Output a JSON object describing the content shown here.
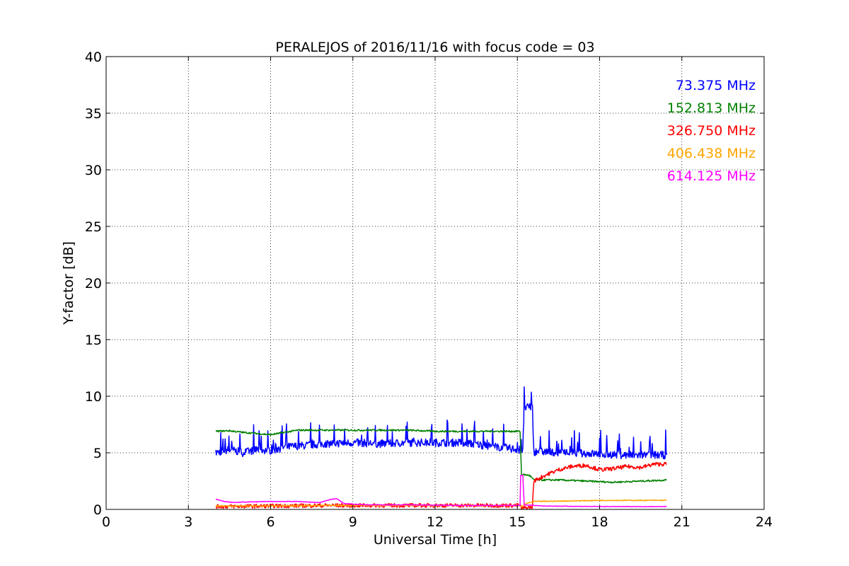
{
  "chart_data": {
    "type": "line",
    "title": "PERALEJOS of 2016/11/16 with focus code = 03",
    "xlabel": "Universal Time [h]",
    "ylabel": "Y-factor [dB]",
    "xlim": [
      0,
      24
    ],
    "ylim": [
      0,
      40
    ],
    "xticks": [
      0,
      3,
      6,
      9,
      12,
      15,
      18,
      21,
      24
    ],
    "yticks": [
      0,
      5,
      10,
      15,
      20,
      25,
      30,
      35,
      40
    ],
    "grid": true,
    "legend_position": "top-right",
    "series": [
      {
        "name": "73.375 MHz",
        "color": "#0000ff",
        "noise": 0.7,
        "points": [
          [
            4.0,
            5.0
          ],
          [
            4.5,
            5.3
          ],
          [
            5.0,
            5.0
          ],
          [
            5.5,
            5.3
          ],
          [
            6.0,
            5.2
          ],
          [
            6.5,
            5.5
          ],
          [
            7.0,
            5.6
          ],
          [
            8.0,
            5.8
          ],
          [
            9.0,
            5.9
          ],
          [
            10.0,
            5.8
          ],
          [
            11.0,
            5.9
          ],
          [
            12.0,
            5.9
          ],
          [
            13.0,
            5.9
          ],
          [
            14.0,
            5.6
          ],
          [
            15.0,
            5.3
          ],
          [
            15.2,
            5.3
          ],
          [
            15.25,
            9.0
          ],
          [
            15.55,
            9.0
          ],
          [
            15.6,
            5.1
          ],
          [
            16.0,
            5.1
          ],
          [
            17.0,
            5.0
          ],
          [
            18.0,
            4.9
          ],
          [
            19.0,
            4.8
          ],
          [
            20.0,
            4.8
          ],
          [
            20.45,
            4.8
          ]
        ]
      },
      {
        "name": "152.813 MHz",
        "color": "#008000",
        "noise": 0.15,
        "points": [
          [
            4.0,
            6.9
          ],
          [
            4.5,
            6.95
          ],
          [
            5.0,
            6.8
          ],
          [
            5.5,
            6.7
          ],
          [
            6.0,
            6.6
          ],
          [
            6.5,
            6.8
          ],
          [
            7.0,
            7.0
          ],
          [
            8.0,
            7.0
          ],
          [
            9.0,
            7.0
          ],
          [
            10.0,
            7.0
          ],
          [
            11.0,
            7.0
          ],
          [
            12.0,
            6.9
          ],
          [
            13.0,
            6.9
          ],
          [
            14.0,
            6.9
          ],
          [
            15.1,
            6.9
          ],
          [
            15.15,
            3.1
          ],
          [
            15.45,
            3.0
          ],
          [
            15.6,
            2.6
          ],
          [
            16.5,
            2.6
          ],
          [
            17.5,
            2.5
          ],
          [
            18.5,
            2.4
          ],
          [
            19.5,
            2.5
          ],
          [
            20.45,
            2.6
          ]
        ]
      },
      {
        "name": "326.750 MHz",
        "color": "#ff0000",
        "noise": 0.35,
        "points": [
          [
            4.0,
            0.25
          ],
          [
            6.0,
            0.3
          ],
          [
            8.0,
            0.35
          ],
          [
            10.0,
            0.35
          ],
          [
            12.0,
            0.35
          ],
          [
            14.0,
            0.35
          ],
          [
            15.1,
            0.35
          ],
          [
            15.15,
            0.1
          ],
          [
            15.55,
            0.2
          ],
          [
            15.6,
            2.5
          ],
          [
            16.0,
            3.0
          ],
          [
            16.5,
            3.5
          ],
          [
            17.0,
            3.8
          ],
          [
            17.5,
            3.9
          ],
          [
            18.0,
            3.5
          ],
          [
            18.5,
            3.6
          ],
          [
            19.0,
            3.8
          ],
          [
            19.5,
            3.7
          ],
          [
            20.0,
            4.0
          ],
          [
            20.45,
            4.0
          ]
        ]
      },
      {
        "name": "406.438 MHz",
        "color": "#ffa500",
        "noise": 0.08,
        "points": [
          [
            4.0,
            0.3
          ],
          [
            6.0,
            0.3
          ],
          [
            8.0,
            0.35
          ],
          [
            10.0,
            0.35
          ],
          [
            12.0,
            0.35
          ],
          [
            14.0,
            0.35
          ],
          [
            15.1,
            0.35
          ],
          [
            15.15,
            0.2
          ],
          [
            15.3,
            0.5
          ],
          [
            15.6,
            0.7
          ],
          [
            17.0,
            0.75
          ],
          [
            18.0,
            0.8
          ],
          [
            19.0,
            0.8
          ],
          [
            20.0,
            0.8
          ],
          [
            20.45,
            0.8
          ]
        ]
      },
      {
        "name": "614.125 MHz",
        "color": "#ff00ff",
        "noise": 0.05,
        "points": [
          [
            4.0,
            0.9
          ],
          [
            4.3,
            0.7
          ],
          [
            4.7,
            0.6
          ],
          [
            5.0,
            0.65
          ],
          [
            6.0,
            0.7
          ],
          [
            7.0,
            0.7
          ],
          [
            7.8,
            0.6
          ],
          [
            8.2,
            0.9
          ],
          [
            8.4,
            0.95
          ],
          [
            8.7,
            0.5
          ],
          [
            9.5,
            0.4
          ],
          [
            11.0,
            0.4
          ],
          [
            13.0,
            0.35
          ],
          [
            15.0,
            0.35
          ],
          [
            15.1,
            0.35
          ],
          [
            15.12,
            3.0
          ],
          [
            15.2,
            3.0
          ],
          [
            15.25,
            0.4
          ],
          [
            16.0,
            0.3
          ],
          [
            18.0,
            0.25
          ],
          [
            20.0,
            0.25
          ],
          [
            20.45,
            0.25
          ]
        ]
      }
    ]
  }
}
